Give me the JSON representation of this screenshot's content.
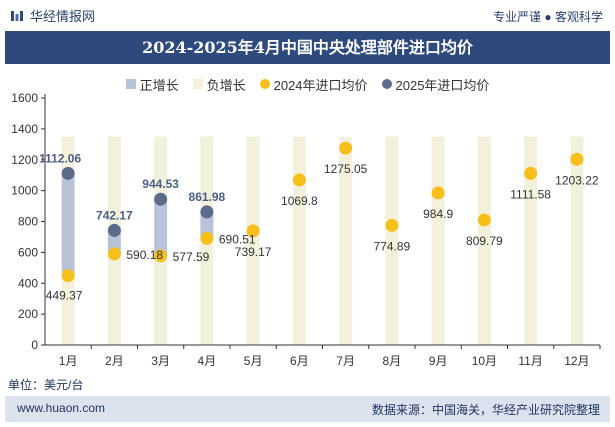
{
  "header": {
    "brand": "华经情报网",
    "slogan": "专业严谨 ● 客观科学"
  },
  "title": "2024-2025年4月中国中央处理部件进口均价",
  "legend": {
    "positive": "正增长",
    "negative": "负增长",
    "series_2024": "2024年进口均价",
    "series_2025": "2025年进口均价"
  },
  "footer": {
    "unit": "单位：美元/台",
    "site": "www.huaon.com",
    "source": "数据来源：中国海关，华经产业研究院整理"
  },
  "colors": {
    "title_bg": "#2e4a7d",
    "positive_bar": "#b9c3d8",
    "negative_bar": "#f3f0dc",
    "series_2024": "#f7bf1a",
    "series_2025": "#5b6b8c",
    "footer_bg": "#dde3ee"
  },
  "chart_data": {
    "type": "scatter",
    "title": "2024-2025年4月中国中央处理部件进口均价",
    "xlabel": "",
    "ylabel": "",
    "ylim": [
      0,
      1600
    ],
    "yticks": [
      0,
      200,
      400,
      600,
      800,
      1000,
      1200,
      1400,
      1600
    ],
    "categories": [
      "1月",
      "2月",
      "3月",
      "4月",
      "5月",
      "6月",
      "7月",
      "8月",
      "9月",
      "10月",
      "11月",
      "12月"
    ],
    "grid": false,
    "legend_position": "top",
    "series": [
      {
        "name": "2024年进口均价",
        "values": [
          449.37,
          590.18,
          577.59,
          690.51,
          739.17,
          1069.8,
          1275.05,
          774.89,
          984.9,
          809.79,
          1111.58,
          1203.22
        ],
        "labels": [
          "449.37",
          "590.18",
          "577.59",
          "690.51",
          "739.17",
          "1069.8",
          "1275.05",
          "774.89",
          "984.9",
          "809.79",
          "1111.58",
          "1203.22"
        ]
      },
      {
        "name": "2025年进口均价",
        "values": [
          1112.06,
          742.17,
          944.53,
          861.98,
          null,
          null,
          null,
          null,
          null,
          null,
          null,
          null
        ],
        "labels": [
          "1112.06",
          "742.17",
          "944.53",
          "861.98",
          "",
          "",
          "",
          "",
          "",
          "",
          "",
          ""
        ]
      }
    ]
  }
}
